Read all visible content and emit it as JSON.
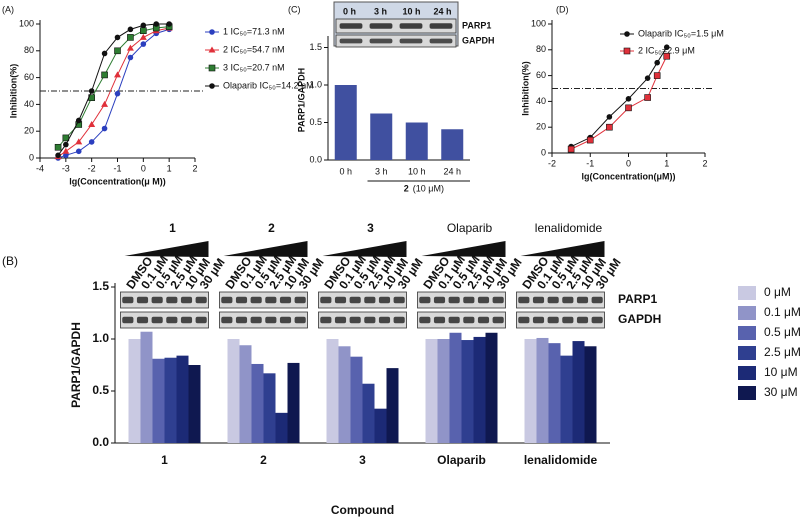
{
  "chart_data": [
    {
      "panel": "(A)",
      "type": "line",
      "x": [
        -3.3,
        -3,
        -2.5,
        -2,
        -1.5,
        -1,
        -0.5,
        0,
        0.5,
        1
      ],
      "series": [
        {
          "name": "1 IC₅₀=71.3 nM",
          "color": "#2b3fbf",
          "marker": "circle",
          "values": [
            0,
            2,
            5,
            12,
            22,
            48,
            75,
            85,
            93,
            96
          ]
        },
        {
          "name": "2 IC₅₀=54.7 nM",
          "color": "#e0303a",
          "marker": "triangle",
          "values": [
            1,
            5,
            12,
            25,
            40,
            62,
            82,
            90,
            95,
            97
          ]
        },
        {
          "name": "3 IC₅₀=20.7 nM",
          "color": "#2e7d32",
          "marker": "square",
          "values": [
            8,
            15,
            25,
            45,
            62,
            80,
            90,
            95,
            97,
            98
          ]
        },
        {
          "name": "Olaparib IC₅₀=14.2 nM",
          "color": "#111111",
          "marker": "circle",
          "values": [
            2,
            10,
            28,
            50,
            78,
            90,
            96,
            99,
            100,
            100
          ]
        }
      ],
      "xlabel": "lg(Concentration(μ M))",
      "ylabel": "Inhibition(%)",
      "xlim": [
        -4,
        2
      ],
      "xticks": [
        -4,
        -3,
        -2,
        -1,
        0,
        1,
        2
      ],
      "ylim": [
        0,
        100
      ],
      "yticks": [
        0,
        20,
        40,
        60,
        80,
        100
      ],
      "reference_line": 50,
      "legend": "right"
    },
    {
      "panel": "(C)",
      "type": "bar",
      "categories": [
        "0 h",
        "3 h",
        "10 h",
        "24 h"
      ],
      "values": [
        1.0,
        0.62,
        0.5,
        0.41
      ],
      "color": "#4050a0",
      "ylabel": "PARP1/GAPDH",
      "ylim": [
        0,
        1.6
      ],
      "yticks": [
        {
          "value": 0,
          "label": "0.0"
        },
        0.5,
        {
          "value": 1,
          "label": "1.0"
        },
        1.5
      ],
      "blot": {
        "lanes": [
          "0 h",
          "3 h",
          "10 h",
          "24 h"
        ],
        "proteins": [
          "PARP1",
          "GAPDH"
        ]
      },
      "treatment": {
        "compound": "2",
        "dose": "(10 μM)"
      }
    },
    {
      "panel": "(D)",
      "type": "line",
      "x": [
        -1.5,
        -1,
        -0.5,
        0,
        0.5,
        0.75,
        1
      ],
      "series": [
        {
          "name": "Olaparib IC₅₀=1.5 μM",
          "color": "#111111",
          "marker": "circle",
          "values": [
            5,
            12,
            28,
            42,
            58,
            70,
            82
          ]
        },
        {
          "name": "2 IC₅₀=2.9 μM",
          "color": "#e0303a",
          "marker": "square",
          "values": [
            3,
            10,
            20,
            35,
            43,
            60,
            75
          ]
        }
      ],
      "xlabel": "lg(Concentration(μM))",
      "ylabel": "Inhibition(%)",
      "xlim": [
        -2,
        2
      ],
      "xticks": [
        -2,
        -1,
        0,
        1,
        2
      ],
      "ylim": [
        0,
        100
      ],
      "yticks": [
        0,
        20,
        40,
        60,
        80,
        100
      ],
      "reference_line": 50,
      "legend": "upper right"
    },
    {
      "panel": "(B)",
      "type": "grouped_bar",
      "categories": [
        "1",
        "2",
        "3",
        "Olaparib",
        "lenalidomide"
      ],
      "series": [
        {
          "name": "0 μM",
          "color": "#c9c9e2",
          "values": [
            1,
            1,
            1,
            1,
            1
          ]
        },
        {
          "name": "0.1 μM",
          "color": "#9094c8",
          "values": [
            1.07,
            0.94,
            0.93,
            1.0,
            1.01
          ]
        },
        {
          "name": "0.5 μM",
          "color": "#5862ae",
          "values": [
            0.81,
            0.76,
            0.83,
            1.06,
            0.96
          ]
        },
        {
          "name": "2.5 μM",
          "color": "#2f3f90",
          "values": [
            0.82,
            0.67,
            0.57,
            0.99,
            0.84
          ]
        },
        {
          "name": "10 μM",
          "color": "#1c2a76",
          "values": [
            0.84,
            0.29,
            0.33,
            1.02,
            0.98
          ]
        },
        {
          "name": "30 μM",
          "color": "#0f1850",
          "values": [
            0.75,
            0.77,
            0.72,
            1.06,
            0.93
          ]
        }
      ],
      "xlabel": "Compound",
      "ylabel": "PARP1/GAPDH",
      "ylim": [
        0,
        1.5
      ],
      "yticks": [
        {
          "value": 0,
          "label": "0.0"
        },
        0.5,
        {
          "value": 1,
          "label": "1.0"
        },
        1.5
      ],
      "blot": {
        "lanes": [
          "DMSO",
          "0.1 μM",
          "0.5 μM",
          "2.5 μM",
          "10 μM",
          "30 μM"
        ],
        "proteins": [
          "PARP1",
          "GAPDH"
        ]
      },
      "legend": "right"
    }
  ]
}
